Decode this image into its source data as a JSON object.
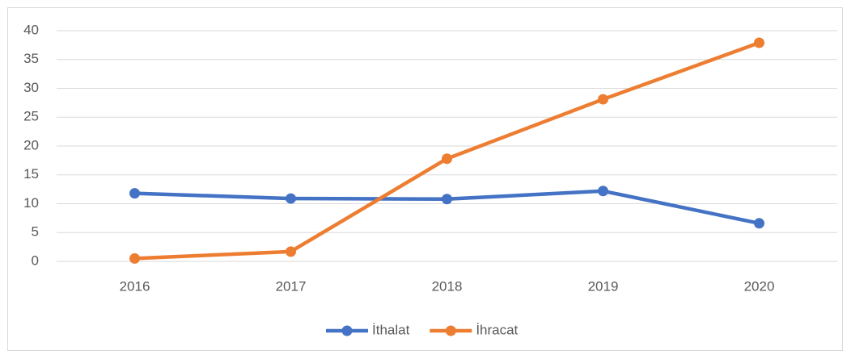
{
  "chart_data": {
    "type": "line",
    "categories": [
      "2016",
      "2017",
      "2018",
      "2019",
      "2020"
    ],
    "series": [
      {
        "name": "İthalat",
        "color": "#4472c4",
        "values": [
          11.8,
          10.9,
          10.8,
          12.2,
          6.6
        ]
      },
      {
        "name": "İhracat",
        "color": "#ed7d31",
        "values": [
          0.5,
          1.7,
          17.8,
          28.1,
          37.9
        ]
      }
    ],
    "ylim": [
      0,
      40
    ],
    "yticks": [
      0,
      5,
      10,
      15,
      20,
      25,
      30,
      35,
      40
    ],
    "grid": true,
    "legend": "bottom"
  }
}
